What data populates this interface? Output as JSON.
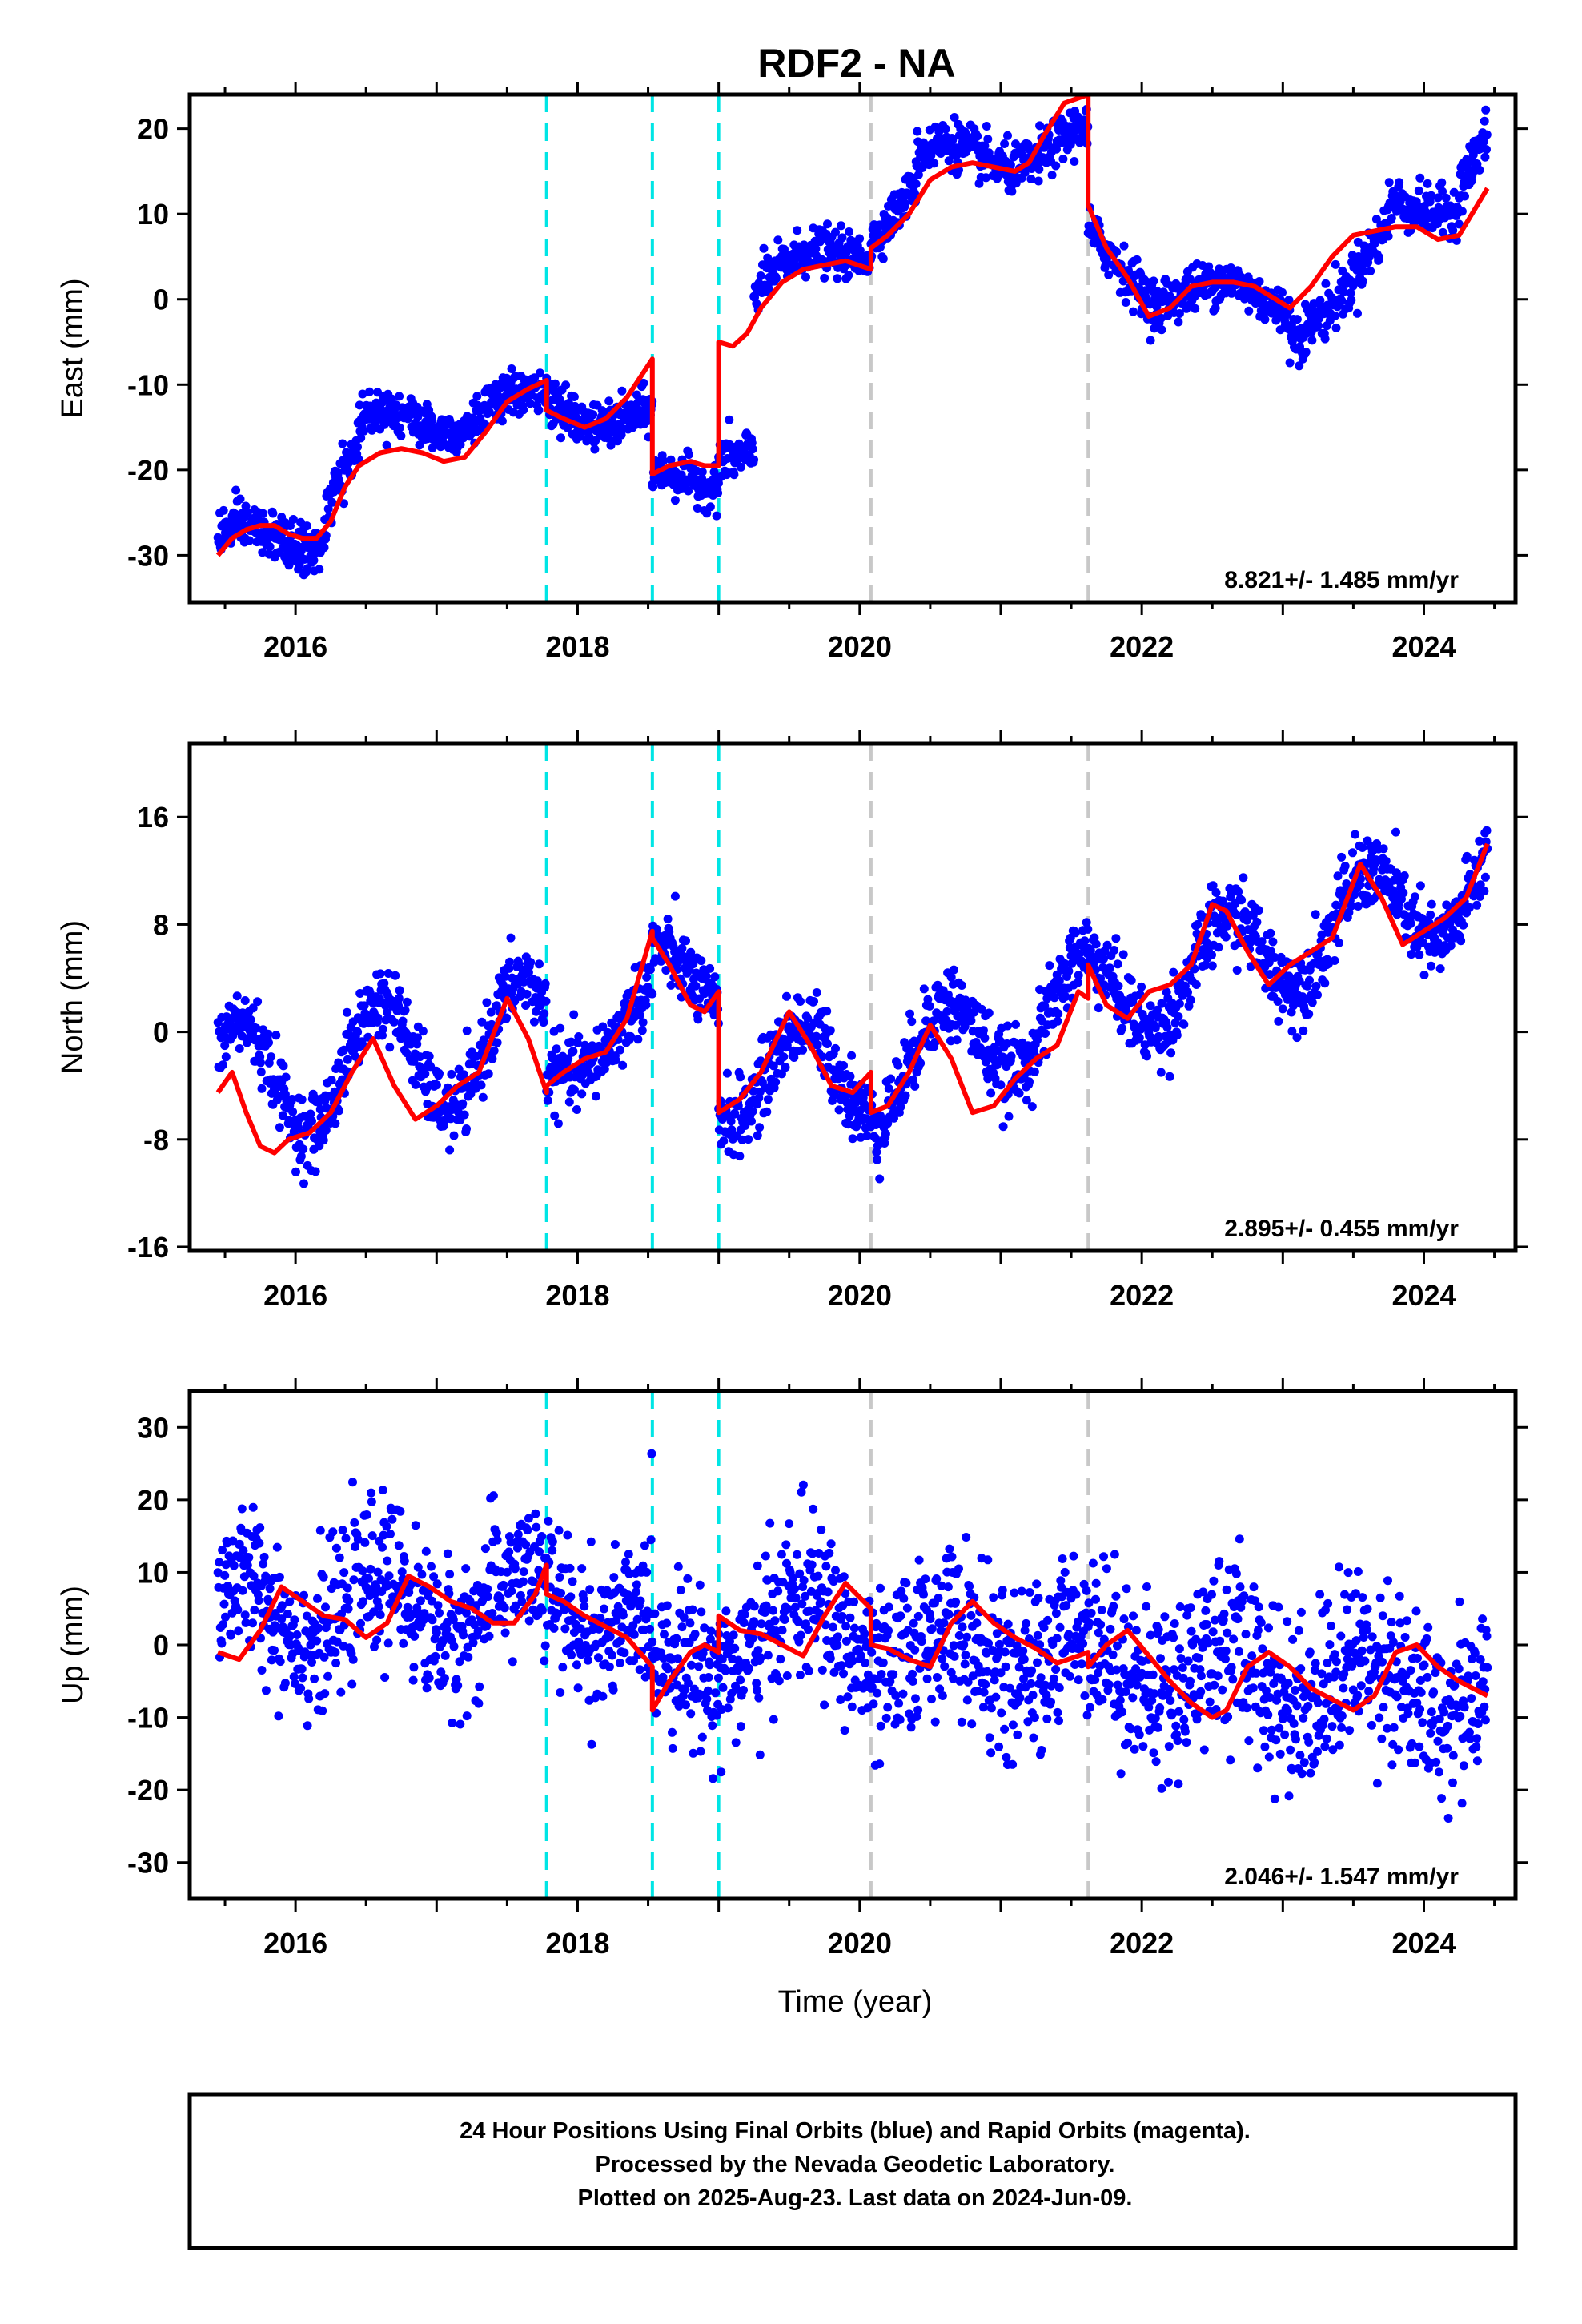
{
  "title": "RDF2 - NA",
  "xlabel": "Time (year)",
  "footer_lines": [
    "24 Hour Positions Using Final Orbits (blue) and Rapid Orbits (magenta).",
    "Processed by the Nevada Geodetic Laboratory.",
    "Plotted on 2025-Aug-23. Last data on 2024-Jun-09."
  ],
  "colors": {
    "points": "#0000ff",
    "fit": "#ff0000",
    "cyan_lines": "#00e5e5",
    "gray_lines": "#c8c8c8",
    "frame": "#000000"
  },
  "chart_data": [
    {
      "type": "scatter",
      "title": "RDF2 - NA",
      "ylabel": "East (mm)",
      "xlim": [
        2015.25,
        2024.65
      ],
      "ylim": [
        -35.5,
        24
      ],
      "xticks": [
        2016,
        2018,
        2020,
        2022,
        2024
      ],
      "yticks": [
        -30,
        -20,
        -10,
        0,
        10,
        20
      ],
      "rate": "8.821+/- 1.485 mm/yr",
      "cyan_breaks": [
        2017.78,
        2018.53,
        2019.0
      ],
      "gray_breaks": [
        2020.08,
        2021.62
      ],
      "segments": [
        {
          "x0": 2015.45,
          "x1": 2016.22,
          "base": -28.5,
          "trend": 1.5,
          "amp": 1.8,
          "noise": 1.4
        },
        {
          "x0": 2016.22,
          "x1": 2016.45,
          "base": -24,
          "trend": 30,
          "amp": 0.5,
          "noise": 1.4
        },
        {
          "x0": 2016.45,
          "x1": 2017.78,
          "base": -15,
          "trend": 2.0,
          "amp": 1.8,
          "noise": 1.3
        },
        {
          "x0": 2017.78,
          "x1": 2018.53,
          "base": -12,
          "trend": -3.5,
          "amp": 1.8,
          "noise": 1.3
        },
        {
          "x0": 2018.53,
          "x1": 2019.0,
          "base": -21,
          "trend": -1.5,
          "amp": 0.8,
          "noise": 1.2
        },
        {
          "x0": 2019.0,
          "x1": 2019.25,
          "base": -18,
          "trend": 0,
          "amp": 0.5,
          "noise": 1.5
        },
        {
          "x0": 2019.25,
          "x1": 2020.08,
          "base": 2,
          "trend": 5.5,
          "amp": 1.5,
          "noise": 1.3
        },
        {
          "x0": 2020.08,
          "x1": 2020.4,
          "base": 7.5,
          "trend": 18,
          "amp": 0.8,
          "noise": 1.2
        },
        {
          "x0": 2020.4,
          "x1": 2021.62,
          "base": 16,
          "trend": 1.8,
          "amp": 2.0,
          "noise": 1.4
        },
        {
          "x0": 2021.62,
          "x1": 2022.15,
          "base": 7,
          "trend": -14,
          "amp": 1.0,
          "noise": 1.4
        },
        {
          "x0": 2022.15,
          "x1": 2023.05,
          "base": 1.5,
          "trend": -2.0,
          "amp": 1.5,
          "noise": 1.3
        },
        {
          "x0": 2023.05,
          "x1": 2023.45,
          "base": -3,
          "trend": 8,
          "amp": 1.5,
          "noise": 1.5
        },
        {
          "x0": 2023.45,
          "x1": 2023.75,
          "base": 1,
          "trend": 25,
          "amp": 0.5,
          "noise": 1.5
        },
        {
          "x0": 2023.75,
          "x1": 2024.25,
          "base": 11,
          "trend": 1.0,
          "amp": 1.2,
          "noise": 1.4
        },
        {
          "x0": 2024.25,
          "x1": 2024.45,
          "base": 13,
          "trend": 30,
          "amp": 0.5,
          "noise": 1.5
        }
      ],
      "fit_line": {
        "x": [
          2015.45,
          2015.55,
          2015.65,
          2015.75,
          2015.85,
          2015.95,
          2016.05,
          2016.15,
          2016.25,
          2016.35,
          2016.45,
          2016.6,
          2016.75,
          2016.9,
          2017.05,
          2017.2,
          2017.35,
          2017.5,
          2017.65,
          2017.78,
          2017.78,
          2017.9,
          2018.05,
          2018.2,
          2018.35,
          2018.53,
          2018.53,
          2018.65,
          2018.8,
          2018.9,
          2019.0,
          2019.0,
          2019.1,
          2019.2,
          2019.3,
          2019.45,
          2019.6,
          2019.75,
          2019.9,
          2020.08,
          2020.08,
          2020.2,
          2020.35,
          2020.5,
          2020.65,
          2020.8,
          2020.95,
          2021.1,
          2021.2,
          2021.3,
          2021.45,
          2021.62,
          2021.62,
          2021.75,
          2021.9,
          2022.05,
          2022.2,
          2022.35,
          2022.5,
          2022.65,
          2022.8,
          2022.95,
          2023.05,
          2023.2,
          2023.35,
          2023.5,
          2023.65,
          2023.8,
          2023.95,
          2024.1,
          2024.25,
          2024.45
        ],
        "y": [
          -30,
          -28,
          -27,
          -26.5,
          -26.5,
          -27.5,
          -28,
          -28,
          -26,
          -22,
          -19.5,
          -18,
          -17.5,
          -18,
          -19,
          -18.5,
          -15.5,
          -12,
          -10.5,
          -9.5,
          -13,
          -14,
          -15,
          -14,
          -11.5,
          -7,
          -20.5,
          -19.5,
          -19,
          -19.5,
          -19.5,
          -5,
          -5.5,
          -4,
          -1,
          2,
          3.5,
          4,
          4.5,
          3.5,
          6,
          7.5,
          10,
          14,
          15.5,
          16,
          15.5,
          15,
          16,
          19,
          23,
          24,
          11,
          6,
          2.5,
          -2,
          -1,
          1.5,
          2,
          2,
          1.5,
          0,
          -1,
          1.5,
          5,
          7.5,
          8,
          8.5,
          8.5,
          7,
          7.5,
          13
        ]
      }
    },
    {
      "type": "scatter",
      "ylabel": "North (mm)",
      "xlim": [
        2015.25,
        2024.65
      ],
      "ylim": [
        -16.3,
        21.5
      ],
      "xticks": [
        2016,
        2018,
        2020,
        2022,
        2024
      ],
      "yticks": [
        -16,
        -8,
        0,
        8,
        16
      ],
      "rate": "2.895+/- 0.455 mm/yr",
      "cyan_breaks": [
        2017.78,
        2018.53,
        2019.0
      ],
      "gray_breaks": [
        2020.08,
        2021.62
      ],
      "segments": [
        {
          "x0": 2015.45,
          "x1": 2017.78,
          "base": -4.0,
          "trend": 1.6,
          "amp": 4.5,
          "noise": 1.3
        },
        {
          "x0": 2017.78,
          "x1": 2018.53,
          "base": -3.5,
          "trend": 8,
          "amp": 1.5,
          "noise": 1.3
        },
        {
          "x0": 2018.53,
          "x1": 2019.0,
          "base": 5,
          "trend": -5,
          "amp": 1.5,
          "noise": 1.3
        },
        {
          "x0": 2019.0,
          "x1": 2020.08,
          "base": -3.0,
          "trend": 0,
          "amp": 3.5,
          "noise": 1.4
        },
        {
          "x0": 2020.08,
          "x1": 2021.62,
          "base": -3.5,
          "trend": 4.0,
          "amp": 3.5,
          "noise": 1.4
        },
        {
          "x0": 2021.62,
          "x1": 2024.45,
          "base": 2.0,
          "trend": 3.3,
          "amp": 3.5,
          "noise": 1.4
        }
      ],
      "fit_line": {
        "x": [
          2015.45,
          2015.55,
          2015.65,
          2015.75,
          2015.85,
          2015.95,
          2016.1,
          2016.25,
          2016.4,
          2016.55,
          2016.7,
          2016.85,
          2017.0,
          2017.15,
          2017.3,
          2017.5,
          2017.65,
          2017.78,
          2017.78,
          2017.9,
          2018.05,
          2018.2,
          2018.35,
          2018.53,
          2018.53,
          2018.65,
          2018.8,
          2018.9,
          2019.0,
          2019.0,
          2019.15,
          2019.3,
          2019.5,
          2019.65,
          2019.8,
          2019.95,
          2020.08,
          2020.08,
          2020.2,
          2020.35,
          2020.5,
          2020.65,
          2020.8,
          2020.95,
          2021.1,
          2021.25,
          2021.4,
          2021.55,
          2021.62,
          2021.62,
          2021.75,
          2021.9,
          2022.05,
          2022.2,
          2022.35,
          2022.5,
          2022.6,
          2022.75,
          2022.9,
          2023.05,
          2023.2,
          2023.35,
          2023.55,
          2023.7,
          2023.85,
          2024.0,
          2024.15,
          2024.3,
          2024.45
        ],
        "y": [
          -4.5,
          -3,
          -6,
          -8.5,
          -9,
          -8,
          -7.5,
          -6,
          -3,
          -0.5,
          -4,
          -6.5,
          -5.5,
          -4,
          -3,
          2.5,
          -0.5,
          -4.5,
          -4,
          -3,
          -2,
          -1.5,
          1,
          7.5,
          7,
          5,
          2,
          1.5,
          3,
          -6,
          -5,
          -3,
          1.5,
          -1,
          -4,
          -4.5,
          -3,
          -6,
          -5.5,
          -3,
          0.5,
          -2,
          -6,
          -5.5,
          -3.5,
          -2,
          -1,
          3,
          2.5,
          5,
          2,
          1,
          3,
          3.5,
          5,
          9.5,
          9,
          6,
          3.5,
          5,
          6,
          7,
          12.5,
          10,
          6.5,
          7.5,
          8.5,
          10,
          14
        ]
      }
    },
    {
      "type": "scatter",
      "ylabel": "Up (mm)",
      "xlim": [
        2015.25,
        2024.65
      ],
      "ylim": [
        -35,
        35
      ],
      "xticks": [
        2016,
        2018,
        2020,
        2022,
        2024
      ],
      "yticks": [
        -30,
        -20,
        -10,
        0,
        10,
        20,
        30
      ],
      "rate": "2.046+/- 1.547 mm/yr",
      "cyan_breaks": [
        2017.78,
        2018.53,
        2019.0
      ],
      "gray_breaks": [
        2020.08,
        2021.62
      ],
      "segments": [
        {
          "x0": 2015.45,
          "x1": 2017.78,
          "base": 4.5,
          "trend": 0.5,
          "amp": 4.5,
          "noise": 5.0
        },
        {
          "x0": 2017.78,
          "x1": 2018.53,
          "base": 6,
          "trend": -5,
          "amp": 3,
          "noise": 5.0
        },
        {
          "x0": 2018.53,
          "x1": 2019.0,
          "base": -4,
          "trend": 3,
          "amp": 3,
          "noise": 5.0
        },
        {
          "x0": 2019.0,
          "x1": 2020.08,
          "base": 2,
          "trend": 0,
          "amp": 5,
          "noise": 5.5
        },
        {
          "x0": 2020.08,
          "x1": 2021.62,
          "base": -1,
          "trend": 0,
          "amp": 4,
          "noise": 5.5
        },
        {
          "x0": 2021.62,
          "x1": 2024.45,
          "base": -2,
          "trend": -1.5,
          "amp": 4,
          "noise": 6.0
        }
      ],
      "fit_line": {
        "x": [
          2015.45,
          2015.6,
          2015.75,
          2015.9,
          2016.05,
          2016.2,
          2016.35,
          2016.5,
          2016.65,
          2016.8,
          2016.95,
          2017.1,
          2017.25,
          2017.4,
          2017.55,
          2017.7,
          2017.78,
          2017.78,
          2017.9,
          2018.05,
          2018.2,
          2018.35,
          2018.53,
          2018.53,
          2018.65,
          2018.8,
          2018.9,
          2019.0,
          2019.0,
          2019.15,
          2019.3,
          2019.45,
          2019.6,
          2019.75,
          2019.9,
          2020.08,
          2020.08,
          2020.2,
          2020.35,
          2020.5,
          2020.65,
          2020.8,
          2020.95,
          2021.1,
          2021.25,
          2021.4,
          2021.55,
          2021.62,
          2021.62,
          2021.75,
          2021.9,
          2022.05,
          2022.2,
          2022.35,
          2022.5,
          2022.6,
          2022.75,
          2022.9,
          2023.05,
          2023.2,
          2023.35,
          2023.5,
          2023.65,
          2023.8,
          2023.95,
          2024.1,
          2024.25,
          2024.45
        ],
        "y": [
          -1,
          -2,
          2,
          8,
          6,
          4,
          3.5,
          1,
          3,
          9.5,
          8,
          6,
          5,
          3,
          3,
          7,
          11,
          7,
          6,
          4,
          2.5,
          1,
          -3,
          -9,
          -5,
          -1,
          0,
          -1,
          4,
          2,
          1.5,
          0,
          -1.5,
          4,
          8.5,
          5,
          0,
          -0.5,
          -2,
          -3,
          3,
          6,
          3,
          1,
          -0.5,
          -2.5,
          -1.5,
          -1,
          -3,
          0,
          2,
          -1.5,
          -5,
          -8,
          -10,
          -9,
          -3,
          -1,
          -3,
          -6,
          -7.5,
          -9,
          -7,
          -1,
          0,
          -3,
          -5,
          -7
        ]
      }
    }
  ]
}
